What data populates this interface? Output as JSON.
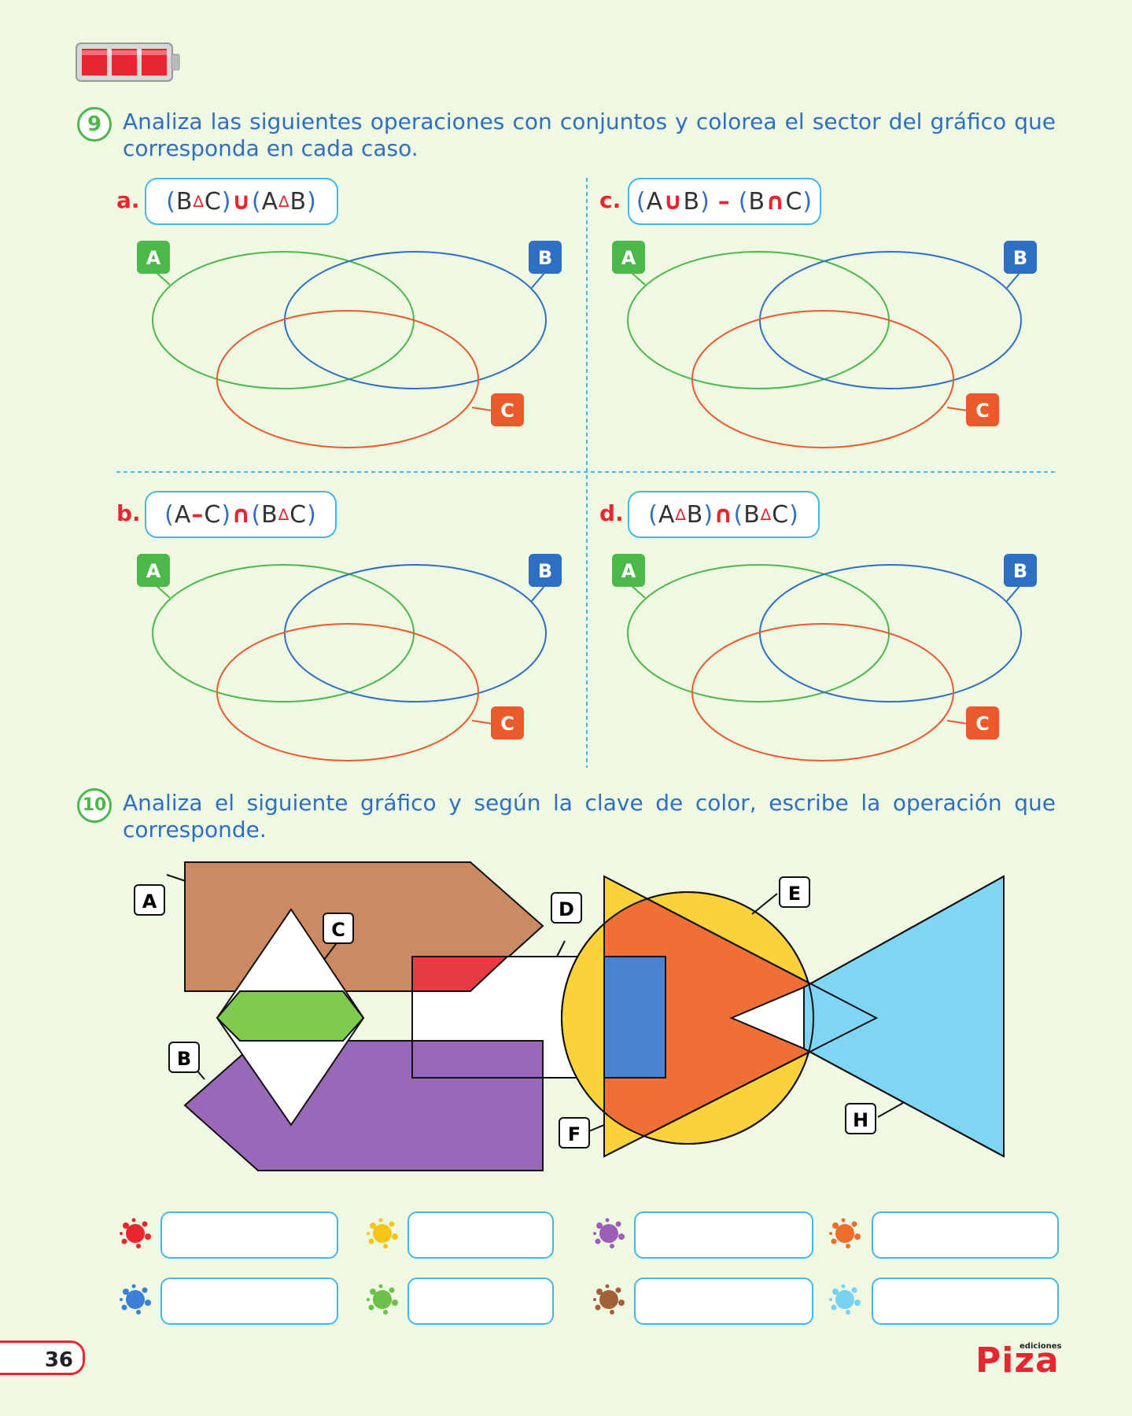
{
  "header": {
    "battery_icon": "battery-full-icon"
  },
  "q9": {
    "number": "9",
    "text": "Analiza las siguientes operaciones con conjuntos y colorea el sector del gráfico que corresponda en cada caso.",
    "items": [
      {
        "label": "a.",
        "parts": [
          "(",
          "B",
          "∆",
          "C",
          ")",
          "∪",
          "(",
          "A",
          "∆",
          "B",
          ")"
        ]
      },
      {
        "label": "b.",
        "parts": [
          "(",
          "A",
          "–",
          "C",
          ")",
          "∩",
          "(",
          "B",
          "∆",
          "C",
          ")"
        ]
      },
      {
        "label": "c.",
        "parts": [
          "(",
          "A",
          "∪",
          "B",
          ")",
          "–",
          "(",
          "B",
          "∩",
          "C",
          ")"
        ]
      },
      {
        "label": "d.",
        "parts": [
          "(",
          "A",
          "∆",
          "B",
          ")",
          "∩",
          "(",
          "B",
          "∆",
          "C",
          ")"
        ]
      }
    ],
    "set_labels": {
      "a": "A",
      "b": "B",
      "c": "C"
    },
    "colors": {
      "a": "#4db84a",
      "b": "#2e6fc4",
      "c": "#ea5a2a"
    }
  },
  "q10": {
    "number": "10",
    "text": "Analiza el siguiente gráfico y según la clave de color, escribe la operación que corresponde.",
    "labels": [
      "A",
      "B",
      "C",
      "D",
      "E",
      "F",
      "H"
    ],
    "color_key": [
      {
        "name": "red",
        "color": "#e8262f"
      },
      {
        "name": "yellow",
        "color": "#f7c51a"
      },
      {
        "name": "purple",
        "color": "#9b5fb8"
      },
      {
        "name": "orange",
        "color": "#ef6c2c"
      },
      {
        "name": "blue",
        "color": "#3c7fd4"
      },
      {
        "name": "green",
        "color": "#6cc04a"
      },
      {
        "name": "brown",
        "color": "#a0603a"
      },
      {
        "name": "light-blue",
        "color": "#79d2f2"
      }
    ]
  },
  "footer": {
    "page_number": "36",
    "brand": "Piza",
    "brand_small": "ediciones"
  }
}
